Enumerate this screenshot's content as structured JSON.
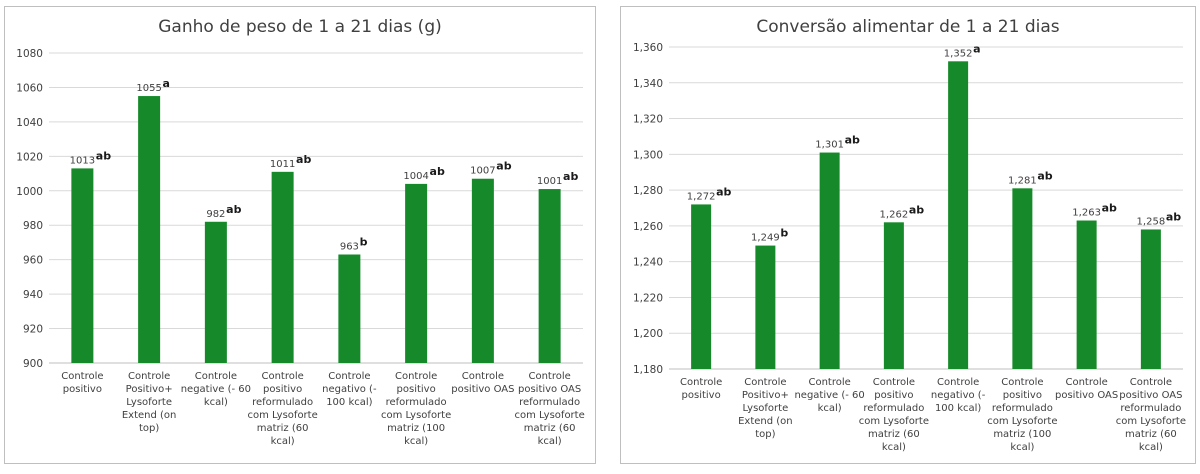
{
  "chart_data": [
    {
      "type": "bar",
      "title": "Ganho de peso de 1 a 21 dias (g)",
      "categories": [
        "Controle positivo",
        "Controle Positivo+ Lysoforte Extend (on top)",
        "Controle negative (- 60 kcal)",
        "Controle positivo reformulado com Lysoforte matriz (60 kcal)",
        "Controle negativo (- 100 kcal)",
        "Controle positivo reformulado com Lysoforte matriz (100 kcal)",
        "Controle positivo OAS",
        "Controle positivo OAS reformulado com Lysoforte matriz (60 kcal)"
      ],
      "category_lines": [
        [
          "Controle",
          "positivo"
        ],
        [
          "Controle",
          "Positivo+",
          "Lysoforte",
          "Extend (on",
          "top)"
        ],
        [
          "Controle",
          "negative (- 60",
          "kcal)"
        ],
        [
          "Controle",
          "positivo",
          "reformulado",
          "com Lysoforte",
          "matriz (60",
          "kcal)"
        ],
        [
          "Controle",
          "negativo (-",
          "100 kcal)"
        ],
        [
          "Controle",
          "positivo",
          "reformulado",
          "com Lysoforte",
          "matriz (100",
          "kcal)"
        ],
        [
          "Controle",
          "positivo OAS"
        ],
        [
          "Controle",
          "positivo OAS",
          "reformulado",
          "com Lysoforte",
          "matriz (60",
          "kcal)"
        ]
      ],
      "values": [
        1013,
        1055,
        982,
        1011,
        963,
        1004,
        1007,
        1001
      ],
      "value_labels": [
        "1013",
        "1055",
        "982",
        "1011",
        "963",
        "1004",
        "1007",
        "1001"
      ],
      "significance": [
        "ab",
        "a",
        "ab",
        "ab",
        "b",
        "ab",
        "ab",
        "ab"
      ],
      "ylim": [
        900,
        1080
      ],
      "yticks": [
        "900",
        "920",
        "940",
        "960",
        "980",
        "1000",
        "1020",
        "1040",
        "1060",
        "1080"
      ],
      "xlabel": "",
      "ylabel": "",
      "grid": true,
      "color": "#168a2a"
    },
    {
      "type": "bar",
      "title": "Conversão alimentar de 1 a 21 dias",
      "categories": [
        "Controle positivo",
        "Controle Positivo+ Lysoforte Extend (on top)",
        "Controle negative (- 60 kcal)",
        "Controle positivo reformulado com Lysoforte matriz (60 kcal)",
        "Controle negativo (- 100 kcal)",
        "Controle positivo reformulado com Lysoforte matriz (100 kcal)",
        "Controle positivo OAS",
        "Controle positivo OAS reformulado com Lysoforte matriz (60 kcal)"
      ],
      "category_lines": [
        [
          "Controle",
          "positivo"
        ],
        [
          "Controle",
          "Positivo+",
          "Lysoforte",
          "Extend (on",
          "top)"
        ],
        [
          "Controle",
          "negative (- 60",
          "kcal)"
        ],
        [
          "Controle",
          "positivo",
          "reformulado",
          "com Lysoforte",
          "matriz (60",
          "kcal)"
        ],
        [
          "Controle",
          "negativo (-",
          "100 kcal)"
        ],
        [
          "Controle",
          "positivo",
          "reformulado",
          "com Lysoforte",
          "matriz (100",
          "kcal)"
        ],
        [
          "Controle",
          "positivo OAS"
        ],
        [
          "Controle",
          "positivo OAS",
          "reformulado",
          "com Lysoforte",
          "matriz (60",
          "kcal)"
        ]
      ],
      "values": [
        1.272,
        1.249,
        1.301,
        1.262,
        1.352,
        1.281,
        1.263,
        1.258
      ],
      "value_labels": [
        "1,272",
        "1,249",
        "1,301",
        "1,262",
        "1,352",
        "1,281",
        "1,263",
        "1,258"
      ],
      "significance": [
        "ab",
        "b",
        "ab",
        "ab",
        "a",
        "ab",
        "ab",
        "ab"
      ],
      "ylim": [
        1.18,
        1.36
      ],
      "yticks": [
        "1,180",
        "1,200",
        "1,220",
        "1,240",
        "1,260",
        "1,280",
        "1,300",
        "1,320",
        "1,340",
        "1,360"
      ],
      "xlabel": "",
      "ylabel": "",
      "grid": true,
      "color": "#168a2a"
    }
  ]
}
